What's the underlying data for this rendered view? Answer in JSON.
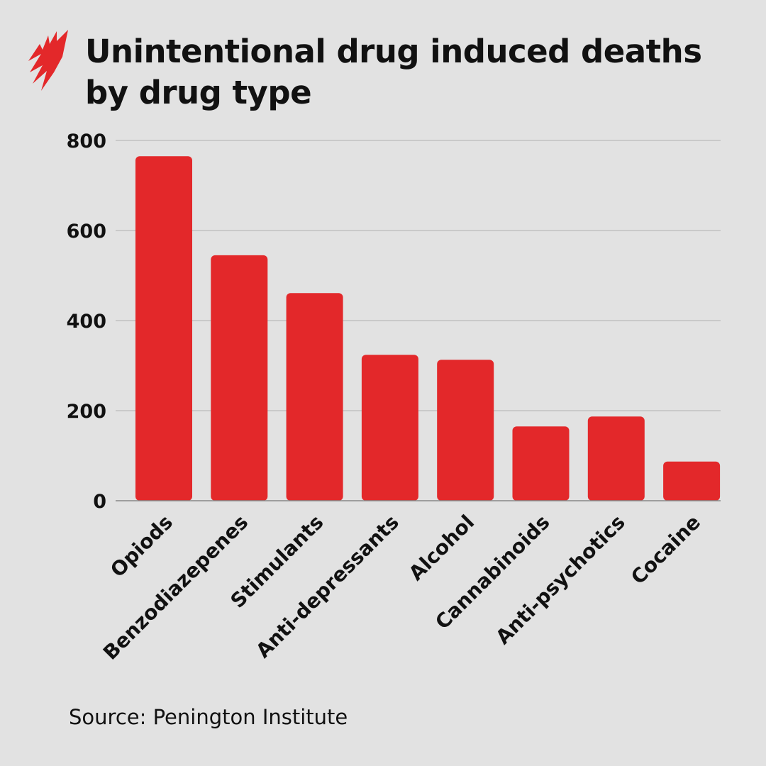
{
  "brand_color": "#e3282a",
  "logo": "sbs-logo",
  "chart_data": {
    "type": "bar",
    "title": "Unintentional drug induced deaths by drug type",
    "xlabel": "",
    "ylabel": "",
    "categories": [
      "Opiods",
      "Benzodiazepenes",
      "Stimulants",
      "Anti-depressants",
      "Alcohol",
      "Cannabinoids",
      "Anti-psychotics",
      "Cocaine"
    ],
    "values": [
      765,
      545,
      461,
      324,
      313,
      165,
      187,
      87
    ],
    "ylim": [
      0,
      800
    ],
    "yticks": [
      "0",
      "200",
      "400",
      "600",
      "800"
    ],
    "grid": true,
    "bar_color": "#e3282a",
    "source": "Source: Penington Institute"
  }
}
